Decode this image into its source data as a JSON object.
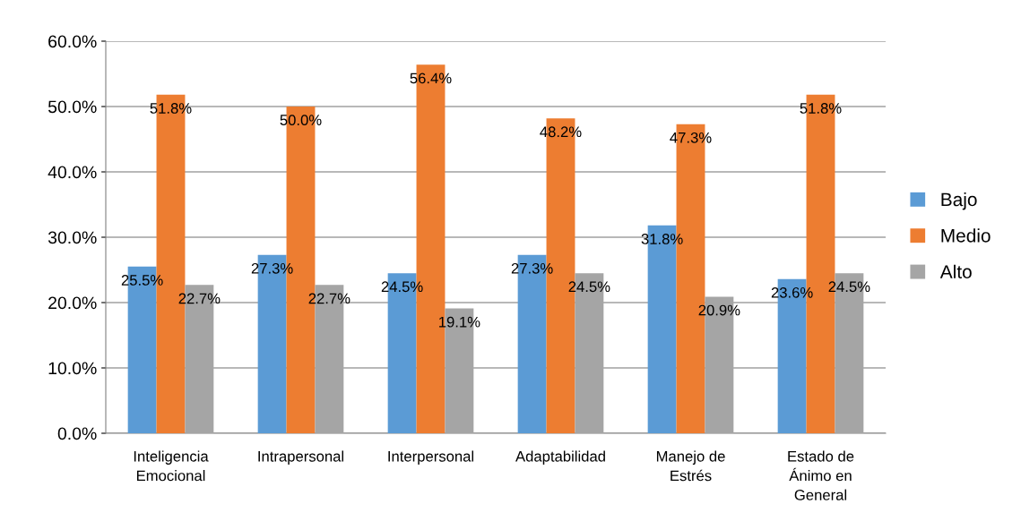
{
  "chart_data": {
    "type": "bar",
    "categories": [
      "Inteligencia\nEmocional",
      "Intrapersonal",
      "Interpersonal",
      "Adaptabilidad",
      "Manejo de\nEstrés",
      "Estado de\nÁnimo en\nGeneral"
    ],
    "series": [
      {
        "name": "Bajo",
        "color": "#5b9bd5",
        "values": [
          25.5,
          27.3,
          24.5,
          27.3,
          31.8,
          23.6
        ],
        "value_labels": [
          "25.5%",
          "27.3%",
          "24.5%",
          "27.3%",
          "31.8%",
          "23.6%"
        ]
      },
      {
        "name": "Medio",
        "color": "#ed7d31",
        "values": [
          51.8,
          50.0,
          56.4,
          48.2,
          47.3,
          51.8
        ],
        "value_labels": [
          "51.8%",
          "50.0%",
          "56.4%",
          "48.2%",
          "47.3%",
          "51.8%"
        ]
      },
      {
        "name": "Alto",
        "color": "#a5a5a5",
        "values": [
          22.7,
          22.7,
          19.1,
          24.5,
          20.9,
          24.5
        ],
        "value_labels": [
          "22.7%",
          "22.7%",
          "19.1%",
          "24.5%",
          "20.9%",
          "24.5%"
        ]
      }
    ],
    "ylim": [
      0,
      60
    ],
    "yticks": [
      {
        "value": 0,
        "label": "0.0%"
      },
      {
        "value": 10,
        "label": "10.0%"
      },
      {
        "value": 20,
        "label": "20.0%"
      },
      {
        "value": 30,
        "label": "30.0%"
      },
      {
        "value": 40,
        "label": "40.0%"
      },
      {
        "value": 50,
        "label": "50.0%"
      },
      {
        "value": 60,
        "label": "60.0%"
      }
    ],
    "grid": "y",
    "legend": "right"
  }
}
